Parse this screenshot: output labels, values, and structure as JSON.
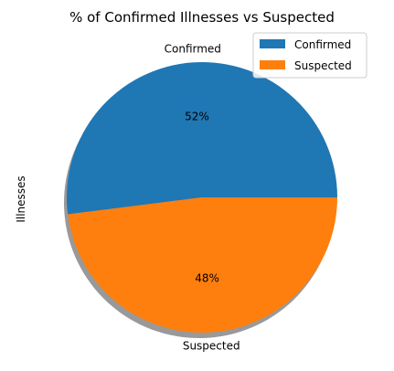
{
  "chart_data": {
    "type": "pie",
    "title": "% of Confirmed Illnesses vs Suspected",
    "ylabel": "Illnesses",
    "categories": [
      "Confirmed",
      "Suspected"
    ],
    "values": [
      52,
      48
    ],
    "pct_labels": [
      "52%",
      "48%"
    ],
    "colors": [
      "#1f77b4",
      "#ff7f0e"
    ],
    "shadow": true,
    "start_angle_deg": 0,
    "legend": {
      "placement": "top-right",
      "entries": [
        "Confirmed",
        "Suspected"
      ]
    }
  }
}
